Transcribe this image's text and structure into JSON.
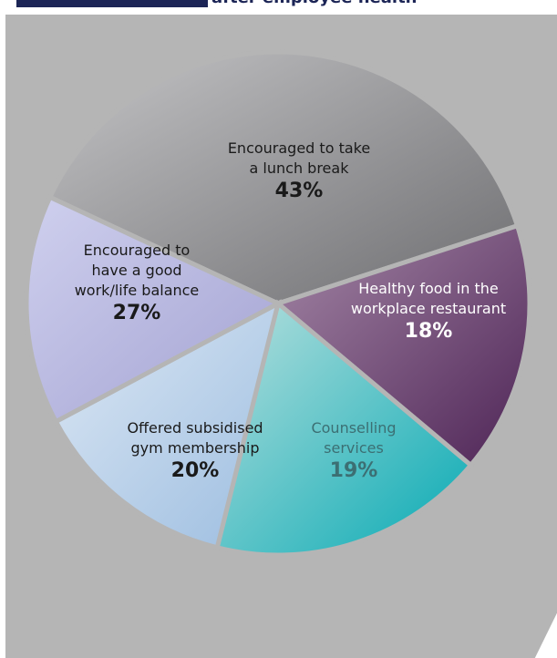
{
  "header": {
    "title_fragment": "after employee health"
  },
  "colors": {
    "panel_bg": "#b5b5b5",
    "header_navy": "#1c2556"
  },
  "chart_data": {
    "type": "pie",
    "title": "",
    "slices": [
      {
        "label": "Encouraged to take a lunch break",
        "lines": [
          "Encouraged to take",
          "a lunch break"
        ],
        "value": 43,
        "value_label": "43%",
        "color": "#9a9a9c",
        "label_color": "#1a1a1a"
      },
      {
        "label": "Healthy food in the workplace restaurant",
        "lines": [
          "Healthy food in the",
          "workplace restaurant"
        ],
        "value": 18,
        "value_label": "18%",
        "color": "#6b3a70",
        "label_color": "#ffffff"
      },
      {
        "label": "Counselling services",
        "lines": [
          "Counselling",
          "services"
        ],
        "value": 19,
        "value_label": "19%",
        "color": "#3cb9b8",
        "label_color": "#3c6f73"
      },
      {
        "label": "Offered subsidised gym membership",
        "lines": [
          "Offered subsidised",
          "gym membership"
        ],
        "value": 20,
        "value_label": "20%",
        "color": "#bcd3ea",
        "label_color": "#1a1a1a"
      },
      {
        "label": "Encouraged to have a good work/life balance",
        "lines": [
          "Encouraged to",
          "have a good",
          "work/life balance"
        ],
        "value": 27,
        "value_label": "27%",
        "color": "#b4b3de",
        "label_color": "#1a1a1a"
      }
    ]
  }
}
